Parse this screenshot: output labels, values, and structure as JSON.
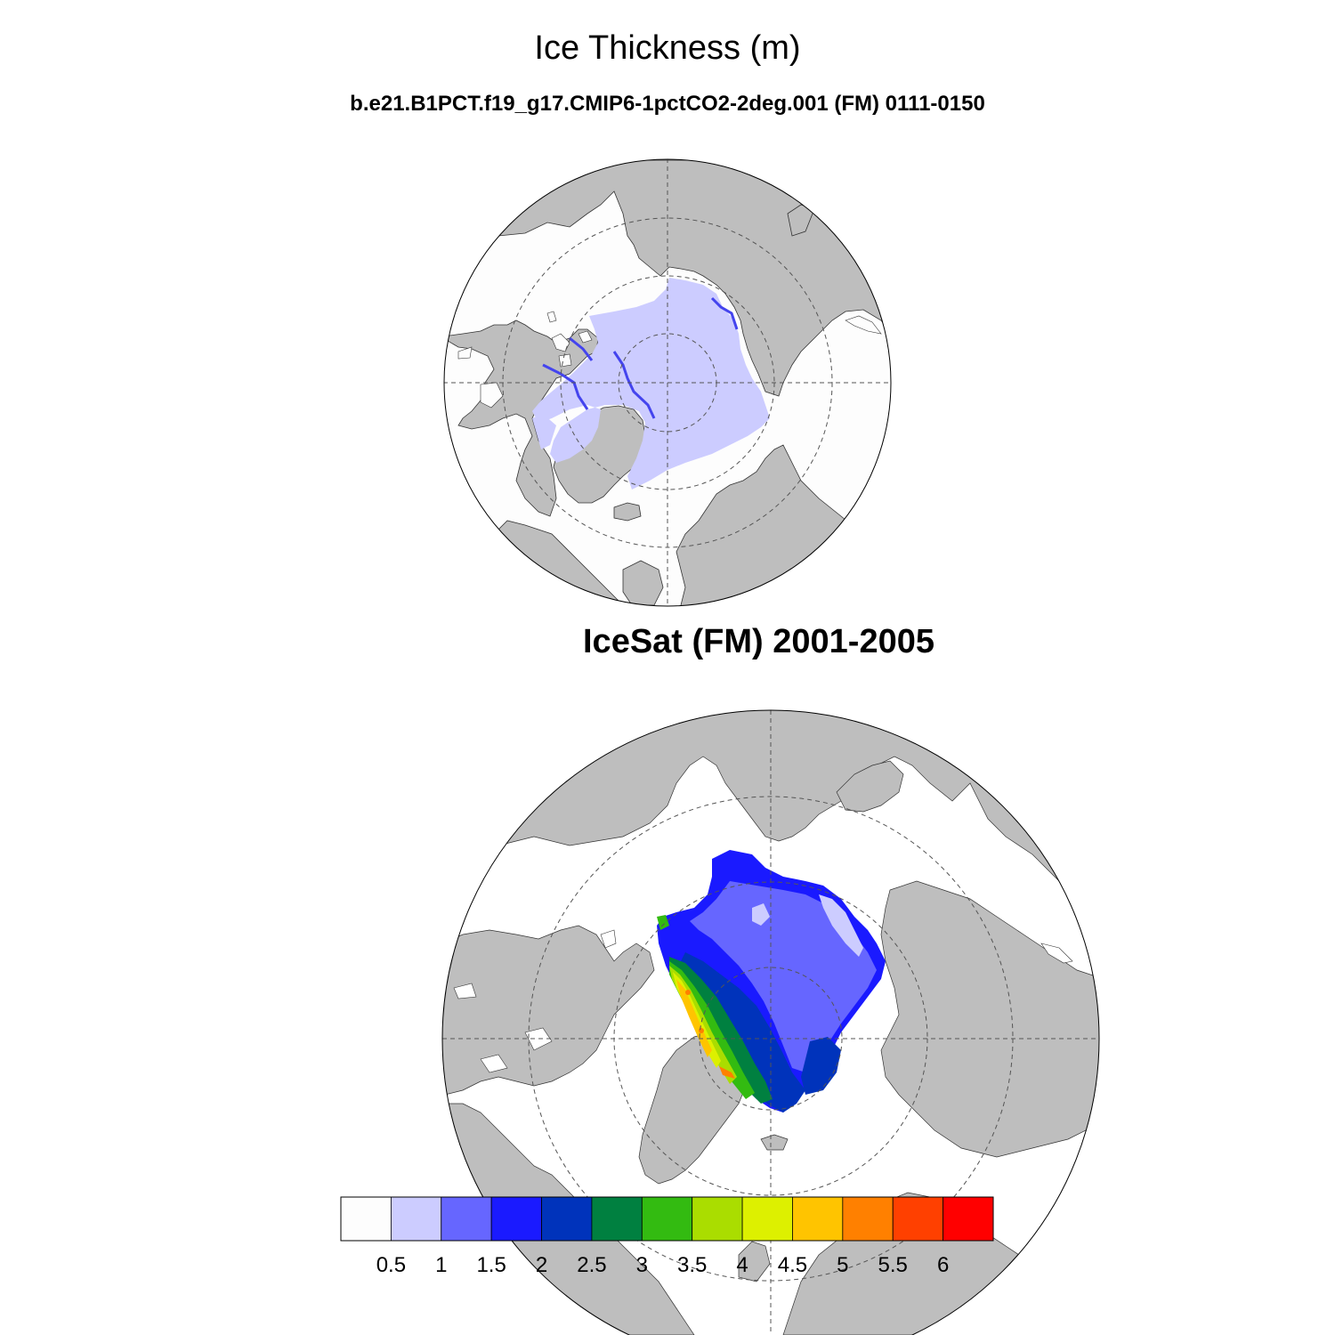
{
  "title": "Ice Thickness (m)",
  "model_panel": {
    "subtitle": "b.e21.B1PCT.f19_g17.CMIP6-1pctCO2-2deg.001 (FM) 0111-0150"
  },
  "obs_panel": {
    "subtitle": "IceSat (FM) 2001-2005"
  },
  "colors": {
    "land": "#bebebe",
    "ocean_no_ice": "#fdfdfd",
    "grid": "#555555"
  },
  "colorbar": {
    "labels": [
      "0.5",
      "1",
      "1.5",
      "2",
      "2.5",
      "3",
      "3.5",
      "4",
      "4.5",
      "5",
      "5.5",
      "6"
    ],
    "colors": [
      "#fdfdfd",
      "#ccccff",
      "#6666ff",
      "#1a1aff",
      "#0033bb",
      "#008040",
      "#33bb11",
      "#aadd00",
      "#ddf000",
      "#ffc400",
      "#ff8000",
      "#ff4000",
      "#ff0000"
    ]
  }
}
